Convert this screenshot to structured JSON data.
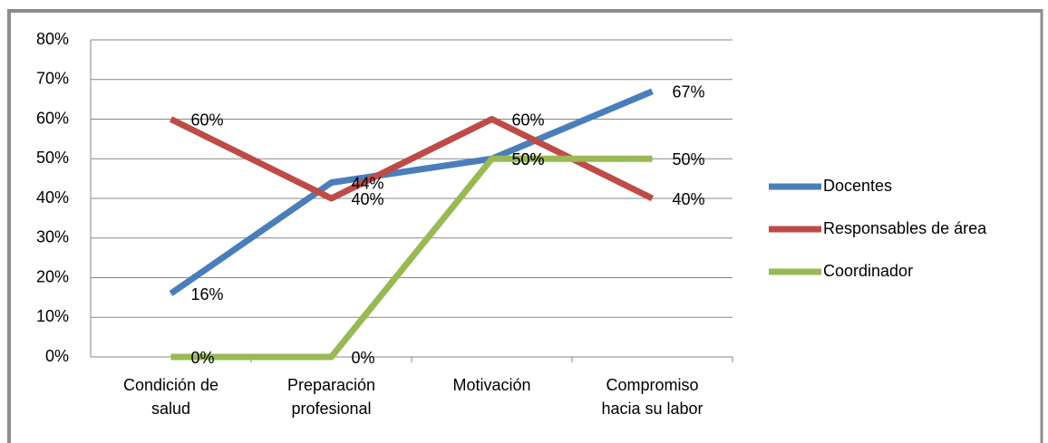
{
  "chart_data": {
    "type": "line",
    "categories": [
      "Condición de salud",
      "Preparación profesional",
      "Motivación",
      "Compromiso hacia su labor"
    ],
    "series": [
      {
        "name": "Docentes",
        "color": "#4a7ebb",
        "values": [
          16,
          44,
          50,
          67
        ],
        "value_labels": [
          "16%",
          "44%",
          "50%",
          "67%"
        ]
      },
      {
        "name": "Responsables de área",
        "color": "#be4b48",
        "values": [
          60,
          40,
          60,
          40
        ],
        "value_labels": [
          "60%",
          "40%",
          "60%",
          "40%"
        ]
      },
      {
        "name": "Coordinador",
        "color": "#98b954",
        "values": [
          0,
          0,
          50,
          50
        ],
        "value_labels": [
          "0%",
          "0%",
          "50%",
          "50%"
        ]
      }
    ],
    "ylim": [
      0,
      80
    ],
    "yticks": [
      {
        "value": 0,
        "label": "0%"
      },
      {
        "value": 10,
        "label": "10%"
      },
      {
        "value": 20,
        "label": "20%"
      },
      {
        "value": 30,
        "label": "30%"
      },
      {
        "value": 40,
        "label": "40%"
      },
      {
        "value": 50,
        "label": "50%"
      },
      {
        "value": 60,
        "label": "60%"
      },
      {
        "value": 70,
        "label": "70%"
      },
      {
        "value": 80,
        "label": "80%"
      }
    ],
    "grid": true,
    "legend": "right"
  }
}
